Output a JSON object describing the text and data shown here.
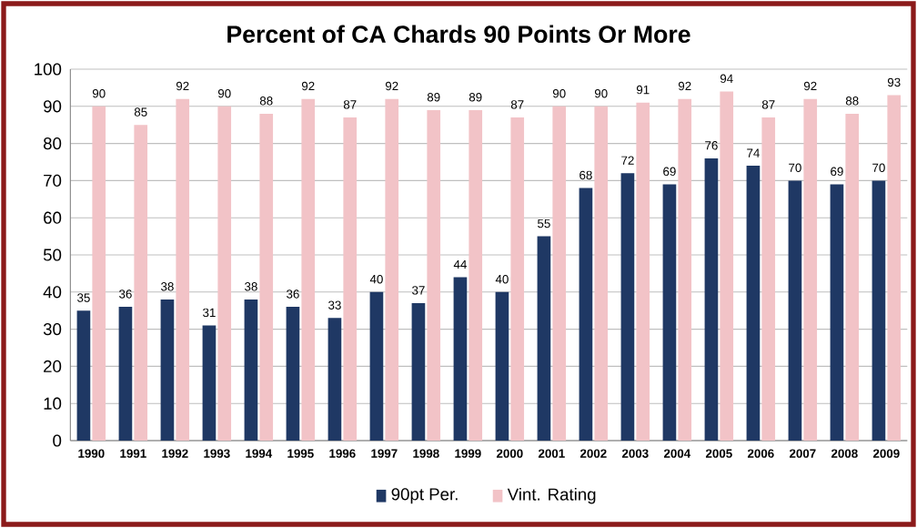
{
  "chart_data": {
    "type": "bar",
    "title": "Percent of CA Chards 90 Points Or More",
    "categories": [
      "1990",
      "1991",
      "1992",
      "1993",
      "1994",
      "1995",
      "1996",
      "1997",
      "1998",
      "1999",
      "2000",
      "2001",
      "2002",
      "2003",
      "2004",
      "2005",
      "2006",
      "2007",
      "2008",
      "2009"
    ],
    "series": [
      {
        "name": "90pt Per.",
        "color": "#1f3864",
        "values": [
          35,
          36,
          38,
          31,
          38,
          36,
          33,
          40,
          37,
          44,
          40,
          55,
          68,
          72,
          69,
          76,
          74,
          70,
          69,
          70
        ]
      },
      {
        "name": "Vint. Rating",
        "color": "#f2c3c7",
        "values": [
          90,
          85,
          92,
          90,
          88,
          92,
          87,
          92,
          89,
          89,
          87,
          90,
          90,
          91,
          92,
          94,
          87,
          92,
          88,
          93
        ]
      }
    ],
    "ylim": [
      0,
      100
    ],
    "yticks": [
      0,
      10,
      20,
      30,
      40,
      50,
      60,
      70,
      80,
      90,
      100
    ],
    "grid": "y",
    "legend": "bottom",
    "data_labels": true
  }
}
